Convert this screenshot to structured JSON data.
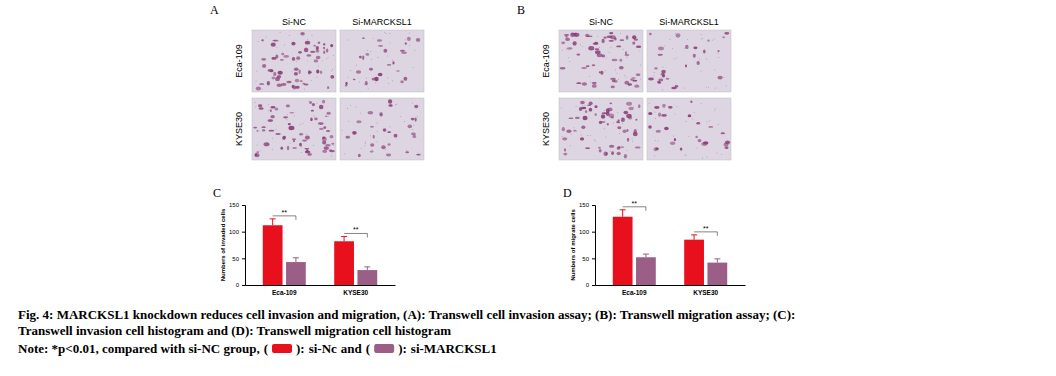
{
  "panels": [
    {
      "label": "A",
      "columns": [
        "Si-NC",
        "Si-MARCKSL1"
      ],
      "rows": [
        "Eca-109",
        "KYSE30"
      ]
    },
    {
      "label": "B",
      "columns": [
        "Si-NC",
        "Si-MARCKSL1"
      ],
      "rows": [
        "Eca-109",
        "KYSE30"
      ]
    }
  ],
  "chart_data": [
    {
      "type": "bar",
      "title": "C",
      "y_label": "Numbers of invaded cells",
      "categories": [
        "Eca-109",
        "KYSE30"
      ],
      "series": [
        {
          "name": "si-Nc",
          "color": "#e8101c",
          "values": [
            112,
            82
          ],
          "errors": [
            12,
            9
          ]
        },
        {
          "name": "si-MARCKSL1",
          "color": "#9b5f87",
          "values": [
            43,
            28
          ],
          "errors": [
            8,
            6
          ]
        }
      ],
      "significance": [
        "**",
        "**"
      ],
      "ylim": [
        0,
        150
      ],
      "yticks": [
        0,
        50,
        100,
        150
      ]
    },
    {
      "type": "bar",
      "title": "D",
      "y_label": "Numbers of migrate cells",
      "categories": [
        "Eca-109",
        "KYSE30"
      ],
      "series": [
        {
          "color": "#e8101c",
          "values": [
            128,
            85
          ],
          "errors": [
            13,
            9
          ]
        },
        {
          "color": "#9b5f87",
          "values": [
            52,
            42
          ],
          "errors": [
            6,
            7
          ]
        }
      ],
      "significance": [
        "**",
        "**"
      ],
      "ylim": [
        0,
        150
      ],
      "yticks": [
        0,
        50,
        100,
        150
      ]
    }
  ],
  "caption": {
    "lines": [
      "Fig. 4: MARCKSL1 knockdown reduces cell invasion and migration, (A): Transwell cell invasion assay; (B): Transwell migration assay; (C):",
      "Transwell invasion cell histogram and (D): Transwell migration cell histogram"
    ],
    "note": "Note: *p<0.01, compared with si-NC group,",
    "open": "(",
    "close": "):",
    "joiner": "and"
  }
}
